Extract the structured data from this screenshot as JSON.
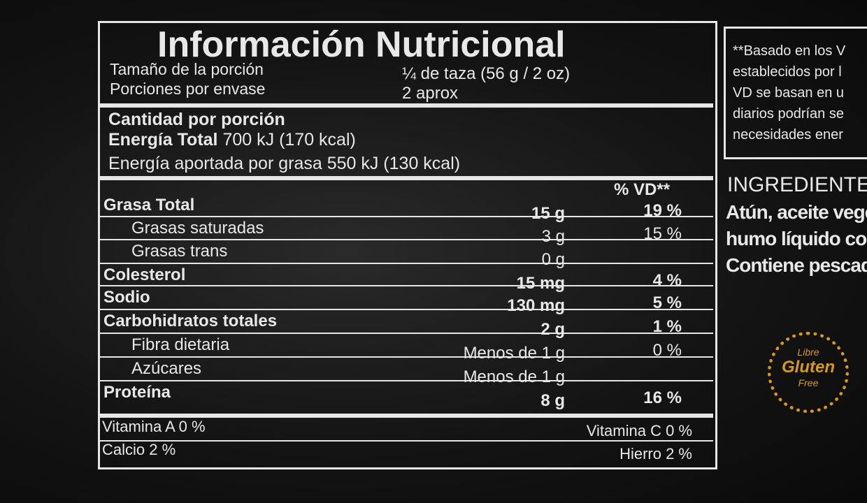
{
  "label": {
    "title": "Información Nutricional",
    "serving": [
      {
        "name": "Tamaño de la porción",
        "value": "¼ de taza  (56 g / 2 oz)"
      },
      {
        "name": "Porciones por envase",
        "value": "2 aprox"
      }
    ],
    "amount_heading": "Cantidad por porción",
    "energy_label": "Energía Total",
    "energy_value": "700 kJ (170 kcal)",
    "fat_energy": "Energía aportada por grasa 550 kJ (130 kcal)",
    "dv_heading": "% VD**",
    "rows": [
      {
        "name": "Grasa Total",
        "amount": "15 g",
        "dv": "19 %"
      },
      {
        "name": "Grasas saturadas",
        "amount": "3 g",
        "dv": "15 %"
      },
      {
        "name": "Grasas trans",
        "amount": "0 g"
      },
      {
        "name": "Colesterol",
        "amount": "15 mg",
        "dv": "4 %"
      },
      {
        "name": "Sodio",
        "amount": "130 mg",
        "dv": "5 %"
      },
      {
        "name": "Carbohidratos totales",
        "amount": "2 g",
        "dv": "1 %"
      },
      {
        "name": "Fibra dietaria",
        "amount": "Menos de 1 g",
        "dv": "0 %"
      },
      {
        "name": "Azúcares",
        "amount": "Menos de 1 g"
      },
      {
        "name": "Proteína",
        "amount": "8 g",
        "dv": "16 %"
      }
    ],
    "vitamins": [
      [
        "Vitamina A 0 %",
        "Vitamina C 0 %"
      ],
      [
        "Calcio 2 %",
        "Hierro 2 %"
      ]
    ]
  },
  "side": {
    "footnote": [
      "**Basado en los V",
      "establecidos por l",
      "VD se basan en u",
      "diarios podrían se",
      "necesidades ener"
    ],
    "ingredients_title": "INGREDIENTE",
    "ingredients": [
      "Atún, aceite vege",
      "humo líquido co",
      "Contiene pescad"
    ],
    "badge": [
      "Libre",
      "Gluten",
      "Free"
    ]
  }
}
